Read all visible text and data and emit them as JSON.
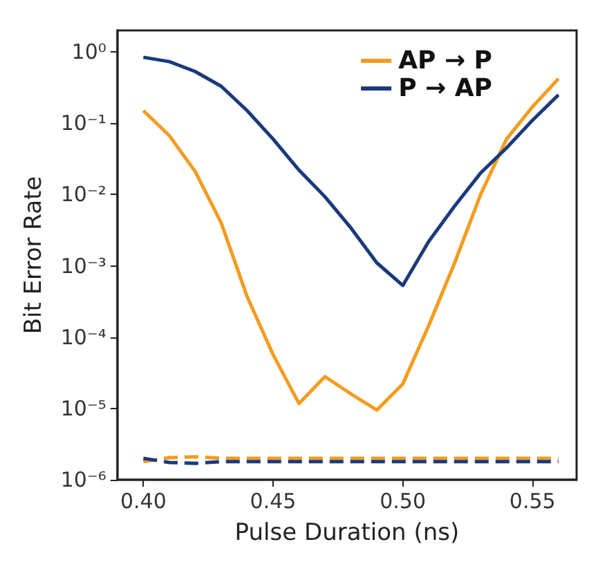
{
  "chart_data": {
    "type": "line",
    "xlabel": "Pulse Duration (ns)",
    "ylabel": "Bit Error Rate",
    "x": [
      0.4,
      0.41,
      0.42,
      0.43,
      0.44,
      0.45,
      0.46,
      0.47,
      0.48,
      0.49,
      0.5,
      0.51,
      0.52,
      0.53,
      0.54,
      0.55,
      0.56
    ],
    "series": [
      {
        "name": "AP → P",
        "color": "#f39c1f",
        "line_style": "solid",
        "values": [
          0.15,
          0.067,
          0.021,
          0.004,
          0.00037,
          5.7e-05,
          1.17e-05,
          2.8e-05,
          1.6e-05,
          9.5e-06,
          2.2e-05,
          0.000145,
          0.0011,
          0.01,
          0.06,
          0.17,
          0.42
        ]
      },
      {
        "name": "P → AP",
        "color": "#1a3a7a",
        "line_style": "solid",
        "values": [
          0.84,
          0.73,
          0.53,
          0.33,
          0.15,
          0.06,
          0.022,
          0.0093,
          0.0034,
          0.0011,
          0.00053,
          0.0022,
          0.0069,
          0.02,
          0.045,
          0.11,
          0.25
        ]
      },
      {
        "color": "#f39c1f",
        "line_style": "dashed",
        "values": [
          1.8e-06,
          2.04e-06,
          2.1e-06,
          2e-06,
          2e-06,
          2e-06,
          2e-06,
          2e-06,
          2e-06,
          2e-06,
          2e-06,
          2e-06,
          2e-06,
          2e-06,
          2e-06,
          2e-06,
          2e-06
        ]
      },
      {
        "color": "#1a3a7a",
        "line_style": "dashed",
        "values": [
          2e-06,
          1.75e-06,
          1.7e-06,
          1.8e-06,
          1.8e-06,
          1.8e-06,
          1.8e-06,
          1.8e-06,
          1.8e-06,
          1.8e-06,
          1.8e-06,
          1.8e-06,
          1.8e-06,
          1.8e-06,
          1.8e-06,
          1.8e-06,
          1.8e-06
        ]
      }
    ],
    "log": "y",
    "xlim": [
      0.39,
      0.567
    ],
    "ylim": [
      1e-06,
      2
    ],
    "xticks": [
      {
        "value": 0.4,
        "label": "0.40"
      },
      {
        "value": 0.45,
        "label": "0.45"
      },
      {
        "value": 0.5,
        "label": "0.50"
      },
      {
        "value": 0.55,
        "label": "0.55"
      }
    ],
    "yticks": [
      {
        "value": 1,
        "label": "10⁰"
      },
      {
        "value": 0.1,
        "label": "10⁻¹"
      },
      {
        "value": 0.01,
        "label": "10⁻²"
      },
      {
        "value": 0.001,
        "label": "10⁻³"
      },
      {
        "value": 0.0001,
        "label": "10⁻⁴"
      },
      {
        "value": 1e-05,
        "label": "10⁻⁵"
      },
      {
        "value": 1e-06,
        "label": "10⁻⁶"
      }
    ],
    "grid": false,
    "legend": "top right",
    "marker": "none"
  }
}
